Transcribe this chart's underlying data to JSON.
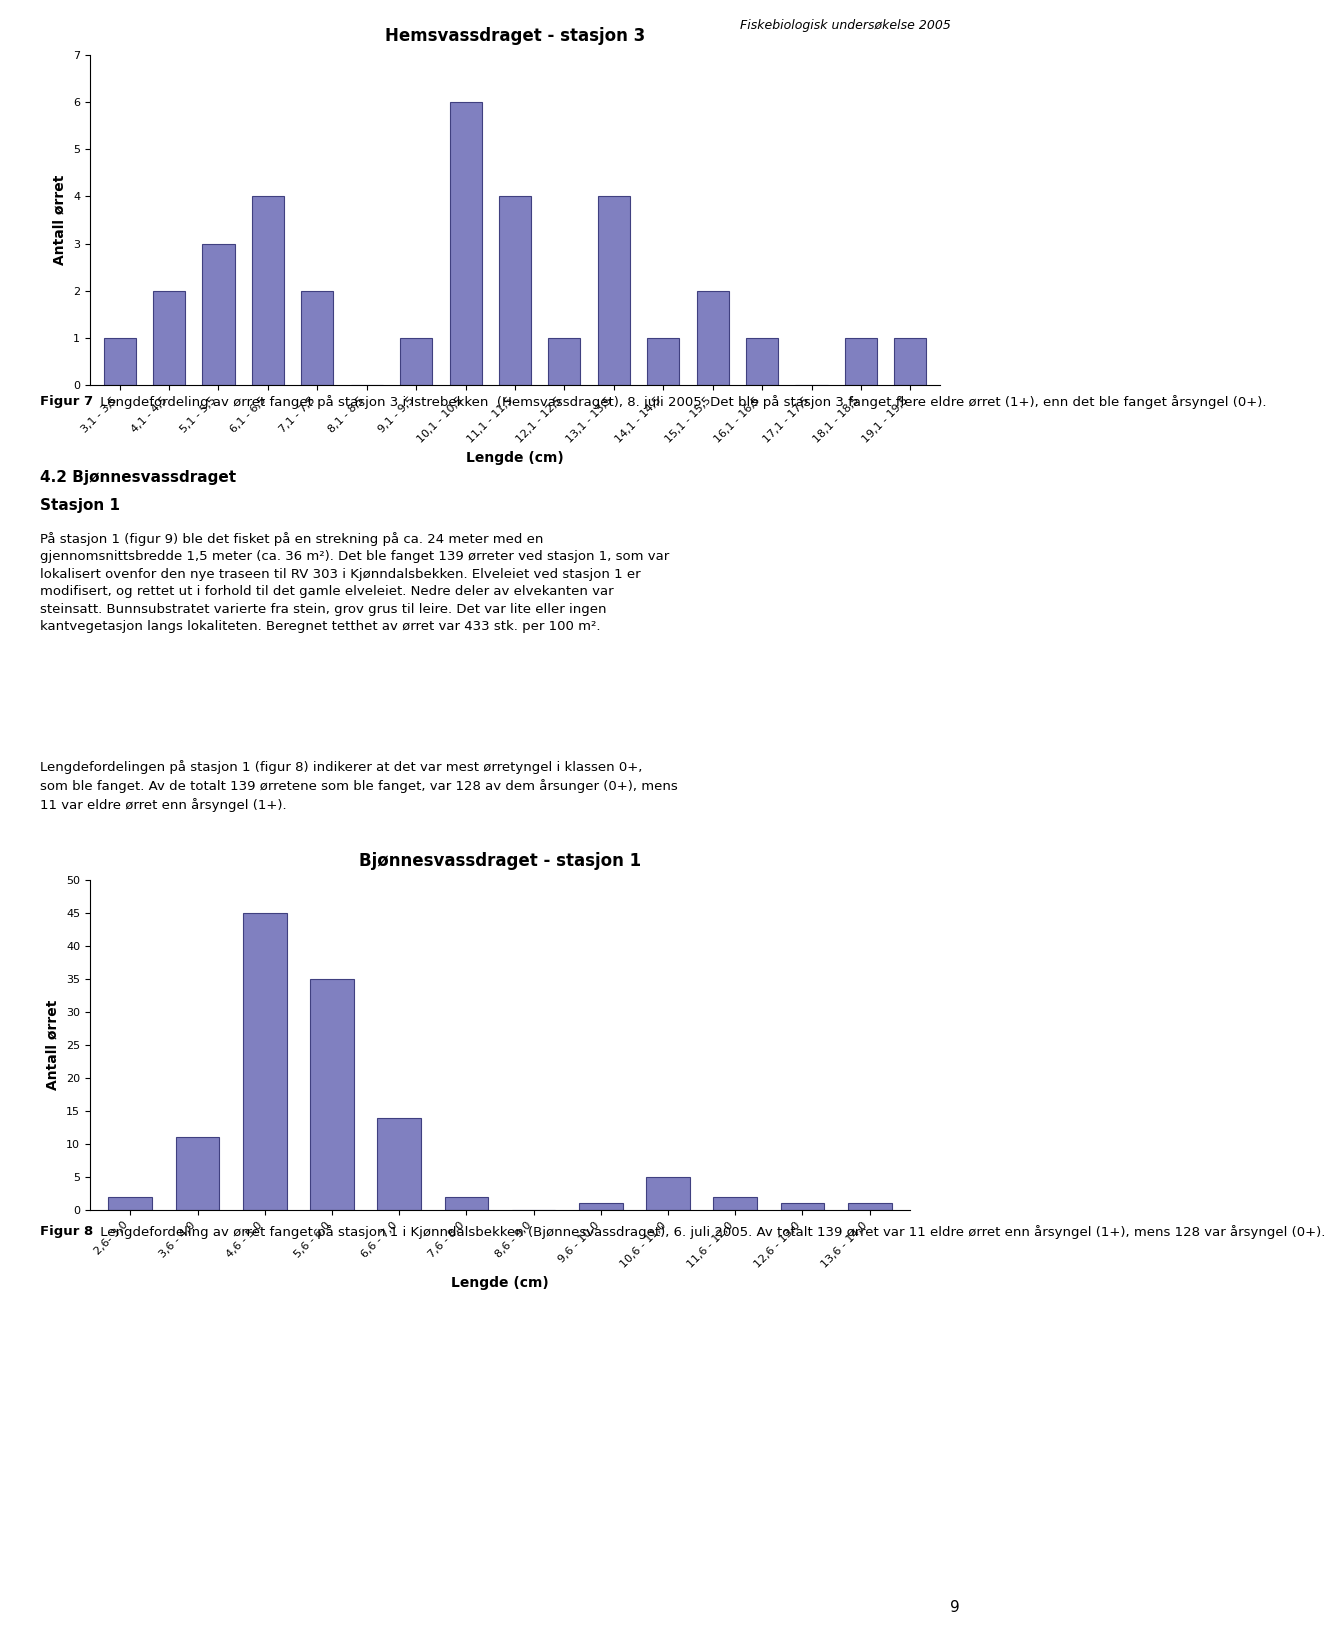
{
  "page_header": "Fiskebiologisk undersøkelse 2005",
  "chart1_title": "Hemsvassdraget - stasjon 3",
  "chart1_categories": [
    "3,1 - 3,5",
    "4,1 - 4,5",
    "5,1 - 5,5",
    "6,1 - 6,5",
    "7,1 - 7,5",
    "8,1 - 8,5",
    "9,1 - 9,5",
    "10,1 - 10,5",
    "11,1 - 11,5",
    "12,1 - 12,5",
    "13,1 - 13,5",
    "14,1 - 14,5",
    "15,1 - 15,5",
    "16,1 - 16,5",
    "17,1 - 17,5",
    "18,1 - 18,5",
    "19,1 - 19,5"
  ],
  "chart1_values": [
    1,
    2,
    3,
    4,
    2,
    0,
    1,
    6,
    4,
    1,
    4,
    1,
    2,
    1,
    0,
    1,
    1
  ],
  "chart1_ylabel": "Antall ørret",
  "chart1_xlabel": "Lengde (cm)",
  "chart1_ylim": [
    0,
    7
  ],
  "chart1_yticks": [
    0,
    1,
    2,
    3,
    4,
    5,
    6,
    7
  ],
  "chart1_bar_color": "#8080C0",
  "chart1_bar_edge_color": "#404080",
  "fig1_caption_bold": "Figur 7",
  "fig1_caption_rest": " Lengdefordeling av ørret fanget på stasjon 3 i Istrebekken  (Hemsvassdraget), 8. juli 2005. Det ble på stasjon 3 fanget flere eldre ørret (1+), enn det ble fanget årsyngel (0+).",
  "section_title1": "4.2 Bjønnesvassdraget",
  "section_title2": "Stasjon 1",
  "section_body1": "På stasjon 1 (figur 9) ble det fisket på en strekning på ca. 24 meter med en gjennomsnittsbredde 1,5 meter (ca. 36 m²). Det ble fanget 139 ørreter ved stasjon 1, som var lokalisert ovenfor den nye traseen til RV 303 i Kjønndalsbekken. Elveleiet ved stasjon 1 er modifisert, og rettet ut i forhold til det gamle elveleiet. Nedre deler av elvekanten var steinsatt. Bunnsubstratet varierte fra stein, grov grus til leire. Det var lite eller ingen kantvegetasjon langs lokaliteten. Beregnet tetthet av ørret var 433 stk. per 100 m².",
  "section_body2": "Lengdefordelingen på stasjon 1 (figur 8) indikerer at det var mest ørretyngel i klassen 0+, som ble fanget. Av de totalt 139 ørretene som ble fanget, var 128 av dem årsunger (0+), mens 11 var eldre ørret enn årsyngel (1+).",
  "chart2_title": "Bjønnesvassdraget - stasjon 1",
  "chart2_categories": [
    "2,6- 3,0",
    "3,6 - 4,0",
    "4,6 - 5,0",
    "5,6 - 6,0",
    "6,6 - 7,0",
    "7,6 - 8,0",
    "8,6 - 9,0",
    "9,6 - 10,0",
    "10,6 - 11,0",
    "11,6 - 12,0",
    "12,6 - 13,0",
    "13,6 - 14,0"
  ],
  "chart2_values": [
    2,
    11,
    45,
    35,
    14,
    2,
    0,
    1,
    5,
    2,
    1,
    1
  ],
  "chart2_ylabel": "Antall ørret",
  "chart2_xlabel": "Lengde (cm)",
  "chart2_ylim": [
    0,
    50
  ],
  "chart2_yticks": [
    0,
    5,
    10,
    15,
    20,
    25,
    30,
    35,
    40,
    45,
    50
  ],
  "chart2_bar_color": "#8080C0",
  "chart2_bar_edge_color": "#404080",
  "fig2_caption_bold": "Figur 8",
  "fig2_caption_rest": " Lengdefordeling av ørret fanget på stasjon 1 i Kjønndalsbekken (Bjønnesvassdraget), 6. juli 2005. Av totalt 139 ørret var 11 eldre ørret enn årsyngel (1+), mens 128 var årsyngel (0+).",
  "page_number": "9",
  "bg": "#ffffff",
  "font_family": "DejaVu Sans"
}
